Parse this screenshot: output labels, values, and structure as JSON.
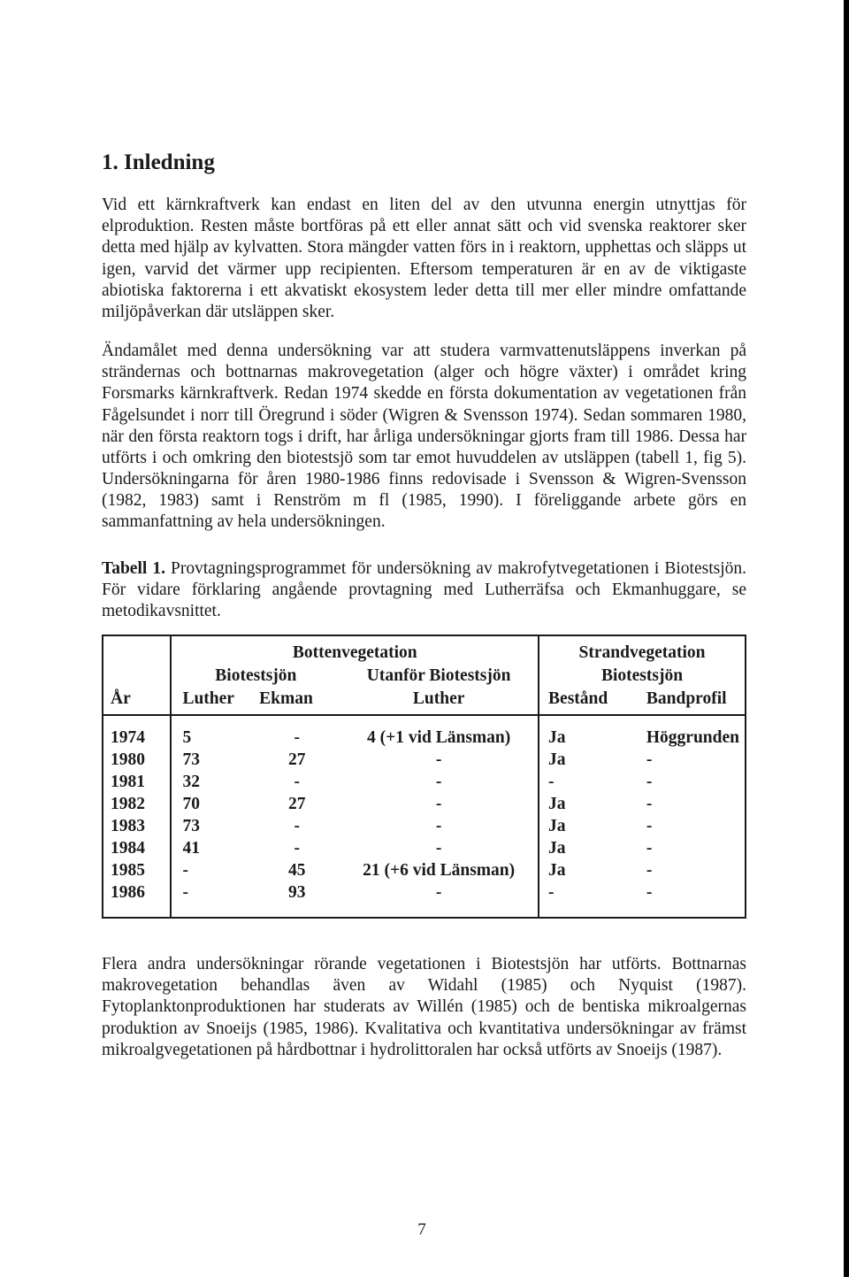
{
  "heading": "1. Inledning",
  "paragraphs": {
    "p1": "Vid ett kärnkraftverk kan endast en liten del av den utvunna energin utnyttjas för elproduktion. Resten måste bortföras på ett eller annat sätt och vid svenska reaktorer sker detta med hjälp av kylvatten. Stora mängder vatten förs in i reaktorn, upphettas och släpps ut igen, varvid det värmer upp recipienten. Eftersom temperaturen är en av de viktigaste abiotiska faktorerna i ett akvatiskt ekosystem leder detta till mer eller mindre omfattande miljöpåverkan där utsläppen sker.",
    "p2": "Ändamålet med denna undersökning var att studera varmvattenutsläppens inverkan på strändernas och bottnarnas makrovegetation (alger och högre växter) i området kring Forsmarks kärnkraftverk. Redan 1974 skedde en första dokumentation av vegetationen från Fågelsundet i norr till Öregrund i söder (Wigren & Svensson 1974). Sedan sommaren 1980, när den första reaktorn togs i drift, har årliga undersökningar gjorts fram till 1986. Dessa har utförts i och omkring den biotestsjö som tar emot huvuddelen av utsläppen (tabell 1, fig 5). Undersökningarna för åren 1980-1986 finns redovisade i Svensson & Wigren-Svensson (1982, 1983) samt i Renström m fl (1985, 1990). I föreliggande arbete görs en sammanfattning av hela undersökningen.",
    "p3": "Flera andra undersökningar rörande vegetationen i Biotestsjön har utförts. Bottnarnas makrovegetation behandlas även av Widahl (1985) och Nyquist (1987). Fytoplanktonproduktionen har studerats av Willén (1985) och de bentiska mikroalgernas produktion av Snoeijs (1985, 1986). Kvalitativa och kvantitativa undersökningar av främst mikroalgvegetationen på hårdbottnar i hydrolittoralen har också utförts av Snoeijs (1987)."
  },
  "table_caption": {
    "label": "Tabell 1.",
    "text": " Provtagningsprogrammet för undersökning av makrofytvegetationen i Biotestsjön. För vidare förklaring angående provtagning med Lutherräfsa och Ekmanhuggare, se metodikavsnittet."
  },
  "table": {
    "group_headers": {
      "botten": "Bottenvegetation",
      "strand": "Strandvegetation"
    },
    "sub_headers": {
      "bio1": "Biotestsjön",
      "utan": "Utanför Biotestsjön",
      "bio2": "Biotestsjön"
    },
    "col_headers": {
      "year": "År",
      "luther": "Luther",
      "ekman": "Ekman",
      "utan_luther": "Luther",
      "bestand": "Bestånd",
      "bandprofil": "Bandprofil"
    },
    "rows": [
      {
        "year": "1974",
        "luther": "5",
        "ekman": "-",
        "utan": "4 (+1 vid Länsman)",
        "bestand": "Ja",
        "band": "Höggrunden"
      },
      {
        "year": "1980",
        "luther": "73",
        "ekman": "27",
        "utan": "-",
        "bestand": "Ja",
        "band": "-"
      },
      {
        "year": "1981",
        "luther": "32",
        "ekman": "-",
        "utan": "-",
        "bestand": "-",
        "band": "-"
      },
      {
        "year": "1982",
        "luther": "70",
        "ekman": "27",
        "utan": "-",
        "bestand": "Ja",
        "band": "-"
      },
      {
        "year": "1983",
        "luther": "73",
        "ekman": "-",
        "utan": "-",
        "bestand": "Ja",
        "band": "-"
      },
      {
        "year": "1984",
        "luther": "41",
        "ekman": "-",
        "utan": "-",
        "bestand": "Ja",
        "band": "-"
      },
      {
        "year": "1985",
        "luther": "-",
        "ekman": "45",
        "utan": "21 (+6 vid Länsman)",
        "bestand": "Ja",
        "band": "-"
      },
      {
        "year": "1986",
        "luther": "-",
        "ekman": "93",
        "utan": "-",
        "bestand": "-",
        "band": "-"
      }
    ]
  },
  "page_number": "7"
}
